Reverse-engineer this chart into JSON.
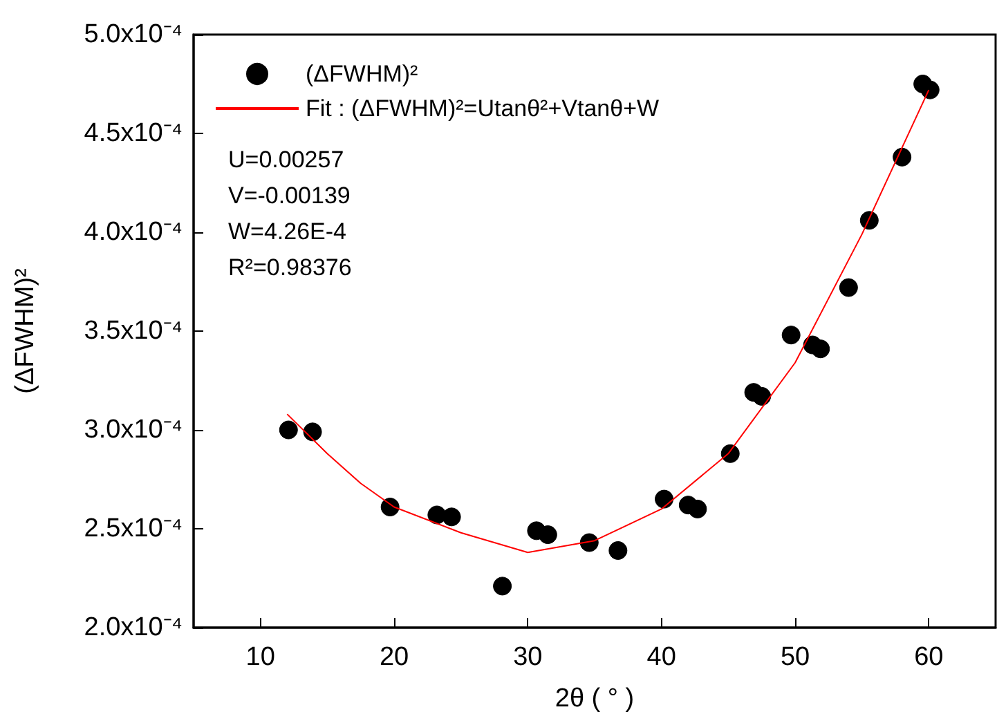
{
  "chart_data": {
    "type": "scatter",
    "xlabel": "2θ ( ° )",
    "ylabel": "(ΔFWHM)²",
    "xlim": [
      5,
      65
    ],
    "xticks": [
      10,
      20,
      30,
      40,
      50,
      60
    ],
    "ylim": [
      0.0002,
      0.0005
    ],
    "yticks": [
      {
        "value": 0.0002,
        "label": "2.0x10⁻⁴"
      },
      {
        "value": 0.00025,
        "label": "2.5x10⁻⁴"
      },
      {
        "value": 0.0003,
        "label": "3.0x10⁻⁴"
      },
      {
        "value": 0.00035,
        "label": "3.5x10⁻⁴"
      },
      {
        "value": 0.0004,
        "label": "4.0x10⁻⁴"
      },
      {
        "value": 0.00045,
        "label": "4.5x10⁻⁴"
      },
      {
        "value": 0.0005,
        "label": "5.0x10⁻⁴"
      }
    ],
    "grid": false,
    "legend": "top left",
    "series": [
      {
        "name": "(ΔFWHM)²",
        "marker": "circle",
        "color": "#000000",
        "x": [
          12.1,
          13.9,
          19.7,
          23.2,
          24.3,
          28.1,
          30.65,
          31.5,
          34.6,
          36.75,
          40.2,
          42.0,
          42.7,
          45.15,
          46.9,
          47.5,
          49.7,
          51.3,
          51.9,
          54.0,
          55.55,
          58.0,
          59.55,
          60.1
        ],
        "values": [
          0.0003,
          0.000299,
          0.000261,
          0.000257,
          0.000256,
          0.000221,
          0.000249,
          0.000247,
          0.000243,
          0.000239,
          0.000265,
          0.000262,
          0.00026,
          0.000288,
          0.000319,
          0.000317,
          0.000348,
          0.000343,
          0.000341,
          0.000372,
          0.000406,
          0.000438,
          0.000475,
          0.000472
        ]
      },
      {
        "name": "Fit : (ΔFWHM)²=Utanθ²+Vtanθ+W",
        "type": "line",
        "marker": "none",
        "line_style": "solid",
        "color": "#ff0000",
        "x": [
          12,
          15,
          17.5,
          20,
          25,
          30,
          35,
          40,
          45,
          50,
          55,
          60
        ],
        "values": [
          0.000308,
          0.000288,
          0.000273,
          0.000261,
          0.000248,
          0.000238,
          0.000244,
          0.00026,
          0.000288,
          0.000334,
          0.000399,
          0.000472
        ]
      }
    ],
    "annotations": [
      "U=0.00257",
      "V=-0.00139",
      "W=4.26E-4",
      "R²=0.98376"
    ]
  }
}
